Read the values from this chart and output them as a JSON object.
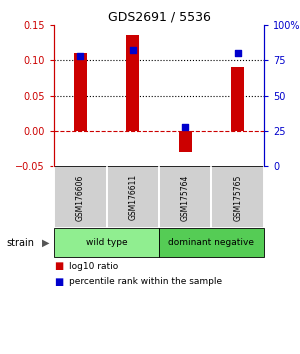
{
  "title": "GDS2691 / 5536",
  "samples": [
    "GSM176606",
    "GSM176611",
    "GSM175764",
    "GSM175765"
  ],
  "log10_ratio": [
    0.11,
    0.135,
    -0.03,
    0.09
  ],
  "percentile_rank": [
    78,
    82,
    28,
    80
  ],
  "ylim_left": [
    -0.05,
    0.15
  ],
  "ylim_right": [
    0,
    100
  ],
  "yticks_left": [
    -0.05,
    0,
    0.05,
    0.1,
    0.15
  ],
  "yticks_right": [
    0,
    25,
    50,
    75,
    100
  ],
  "dotted_lines": [
    0.05,
    0.1
  ],
  "bar_color": "#cc0000",
  "point_color": "#0000cc",
  "groups": [
    {
      "label": "wild type",
      "cols": [
        0,
        1
      ],
      "color": "#90EE90"
    },
    {
      "label": "dominant negative",
      "cols": [
        2,
        3
      ],
      "color": "#55CC55"
    }
  ],
  "strain_label": "strain",
  "legend_bar": "log10 ratio",
  "legend_point": "percentile rank within the sample",
  "left_axis_color": "#cc0000",
  "right_axis_color": "#0000cc",
  "bar_width": 0.25
}
